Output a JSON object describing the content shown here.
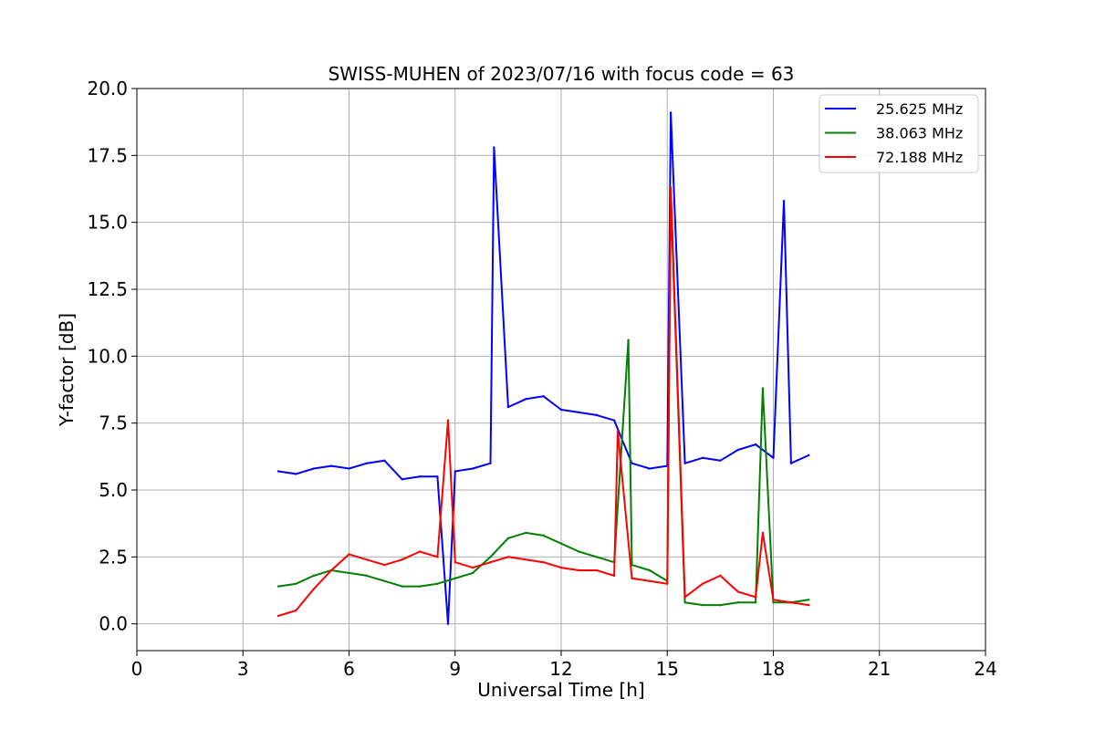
{
  "chart_data": {
    "type": "line",
    "title": "SWISS-MUHEN of 2023/07/16 with focus code = 63",
    "xlabel": "Universal Time [h]",
    "ylabel": "Y-factor [dB]",
    "xlim": [
      0,
      24
    ],
    "ylim": [
      -1,
      20
    ],
    "xticks": [
      0,
      3,
      6,
      9,
      12,
      15,
      18,
      21,
      24
    ],
    "yticks": [
      0.0,
      2.5,
      5.0,
      7.5,
      10.0,
      12.5,
      15.0,
      17.5,
      20.0
    ],
    "xtick_labels": [
      "0",
      "3",
      "6",
      "9",
      "12",
      "15",
      "18",
      "21",
      "24"
    ],
    "ytick_labels": [
      "0.0",
      "2.5",
      "5.0",
      "7.5",
      "10.0",
      "12.5",
      "15.0",
      "17.5",
      "20.0"
    ],
    "grid": true,
    "legend_position": "top-right",
    "series": [
      {
        "name": "25.625 MHz",
        "color": "#0000ff",
        "x": [
          4.0,
          4.5,
          5.0,
          5.5,
          6.0,
          6.5,
          7.0,
          7.5,
          8.0,
          8.5,
          8.8,
          9.0,
          9.5,
          10.0,
          10.1,
          10.5,
          11.0,
          11.5,
          12.0,
          12.5,
          13.0,
          13.5,
          14.0,
          14.5,
          15.0,
          15.1,
          15.5,
          16.0,
          16.5,
          17.0,
          17.5,
          18.0,
          18.3,
          18.5,
          19.0
        ],
        "y": [
          5.7,
          5.6,
          5.8,
          5.9,
          5.8,
          6.0,
          6.1,
          5.4,
          5.5,
          5.5,
          0.0,
          5.7,
          5.8,
          6.0,
          17.8,
          8.1,
          8.4,
          8.5,
          8.0,
          7.9,
          7.8,
          7.6,
          6.0,
          5.8,
          5.9,
          19.1,
          6.0,
          6.2,
          6.1,
          6.5,
          6.7,
          6.2,
          15.8,
          6.0,
          6.3
        ]
      },
      {
        "name": "38.063 MHz",
        "color": "#008000",
        "x": [
          4.0,
          4.5,
          5.0,
          5.5,
          6.0,
          6.5,
          7.0,
          7.5,
          8.0,
          8.5,
          9.0,
          9.5,
          10.0,
          10.5,
          11.0,
          11.5,
          12.0,
          12.5,
          13.0,
          13.5,
          13.9,
          14.0,
          14.5,
          15.0,
          15.1,
          15.5,
          16.0,
          16.5,
          17.0,
          17.5,
          17.7,
          18.0,
          18.5,
          19.0
        ],
        "y": [
          1.4,
          1.5,
          1.8,
          2.0,
          1.9,
          1.8,
          1.6,
          1.4,
          1.4,
          1.5,
          1.7,
          1.9,
          2.5,
          3.2,
          3.4,
          3.3,
          3.0,
          2.7,
          2.5,
          2.3,
          10.6,
          2.2,
          2.0,
          1.6,
          16.0,
          0.8,
          0.7,
          0.7,
          0.8,
          0.8,
          8.8,
          0.8,
          0.8,
          0.9
        ]
      },
      {
        "name": "72.188 MHz",
        "color": "#ff0000",
        "x": [
          4.0,
          4.5,
          5.0,
          5.5,
          6.0,
          6.5,
          7.0,
          7.5,
          8.0,
          8.5,
          8.8,
          9.0,
          9.5,
          10.0,
          10.5,
          11.0,
          11.5,
          12.0,
          12.5,
          13.0,
          13.5,
          13.6,
          14.0,
          14.5,
          15.0,
          15.1,
          15.5,
          16.0,
          16.5,
          17.0,
          17.5,
          17.7,
          18.0,
          18.5,
          19.0
        ],
        "y": [
          0.3,
          0.5,
          1.3,
          2.0,
          2.6,
          2.4,
          2.2,
          2.4,
          2.7,
          2.5,
          7.6,
          2.3,
          2.1,
          2.3,
          2.5,
          2.4,
          2.3,
          2.1,
          2.0,
          2.0,
          1.8,
          7.2,
          1.7,
          1.6,
          1.5,
          16.3,
          1.0,
          1.5,
          1.8,
          1.2,
          1.0,
          3.4,
          0.9,
          0.8,
          0.7
        ]
      }
    ]
  }
}
